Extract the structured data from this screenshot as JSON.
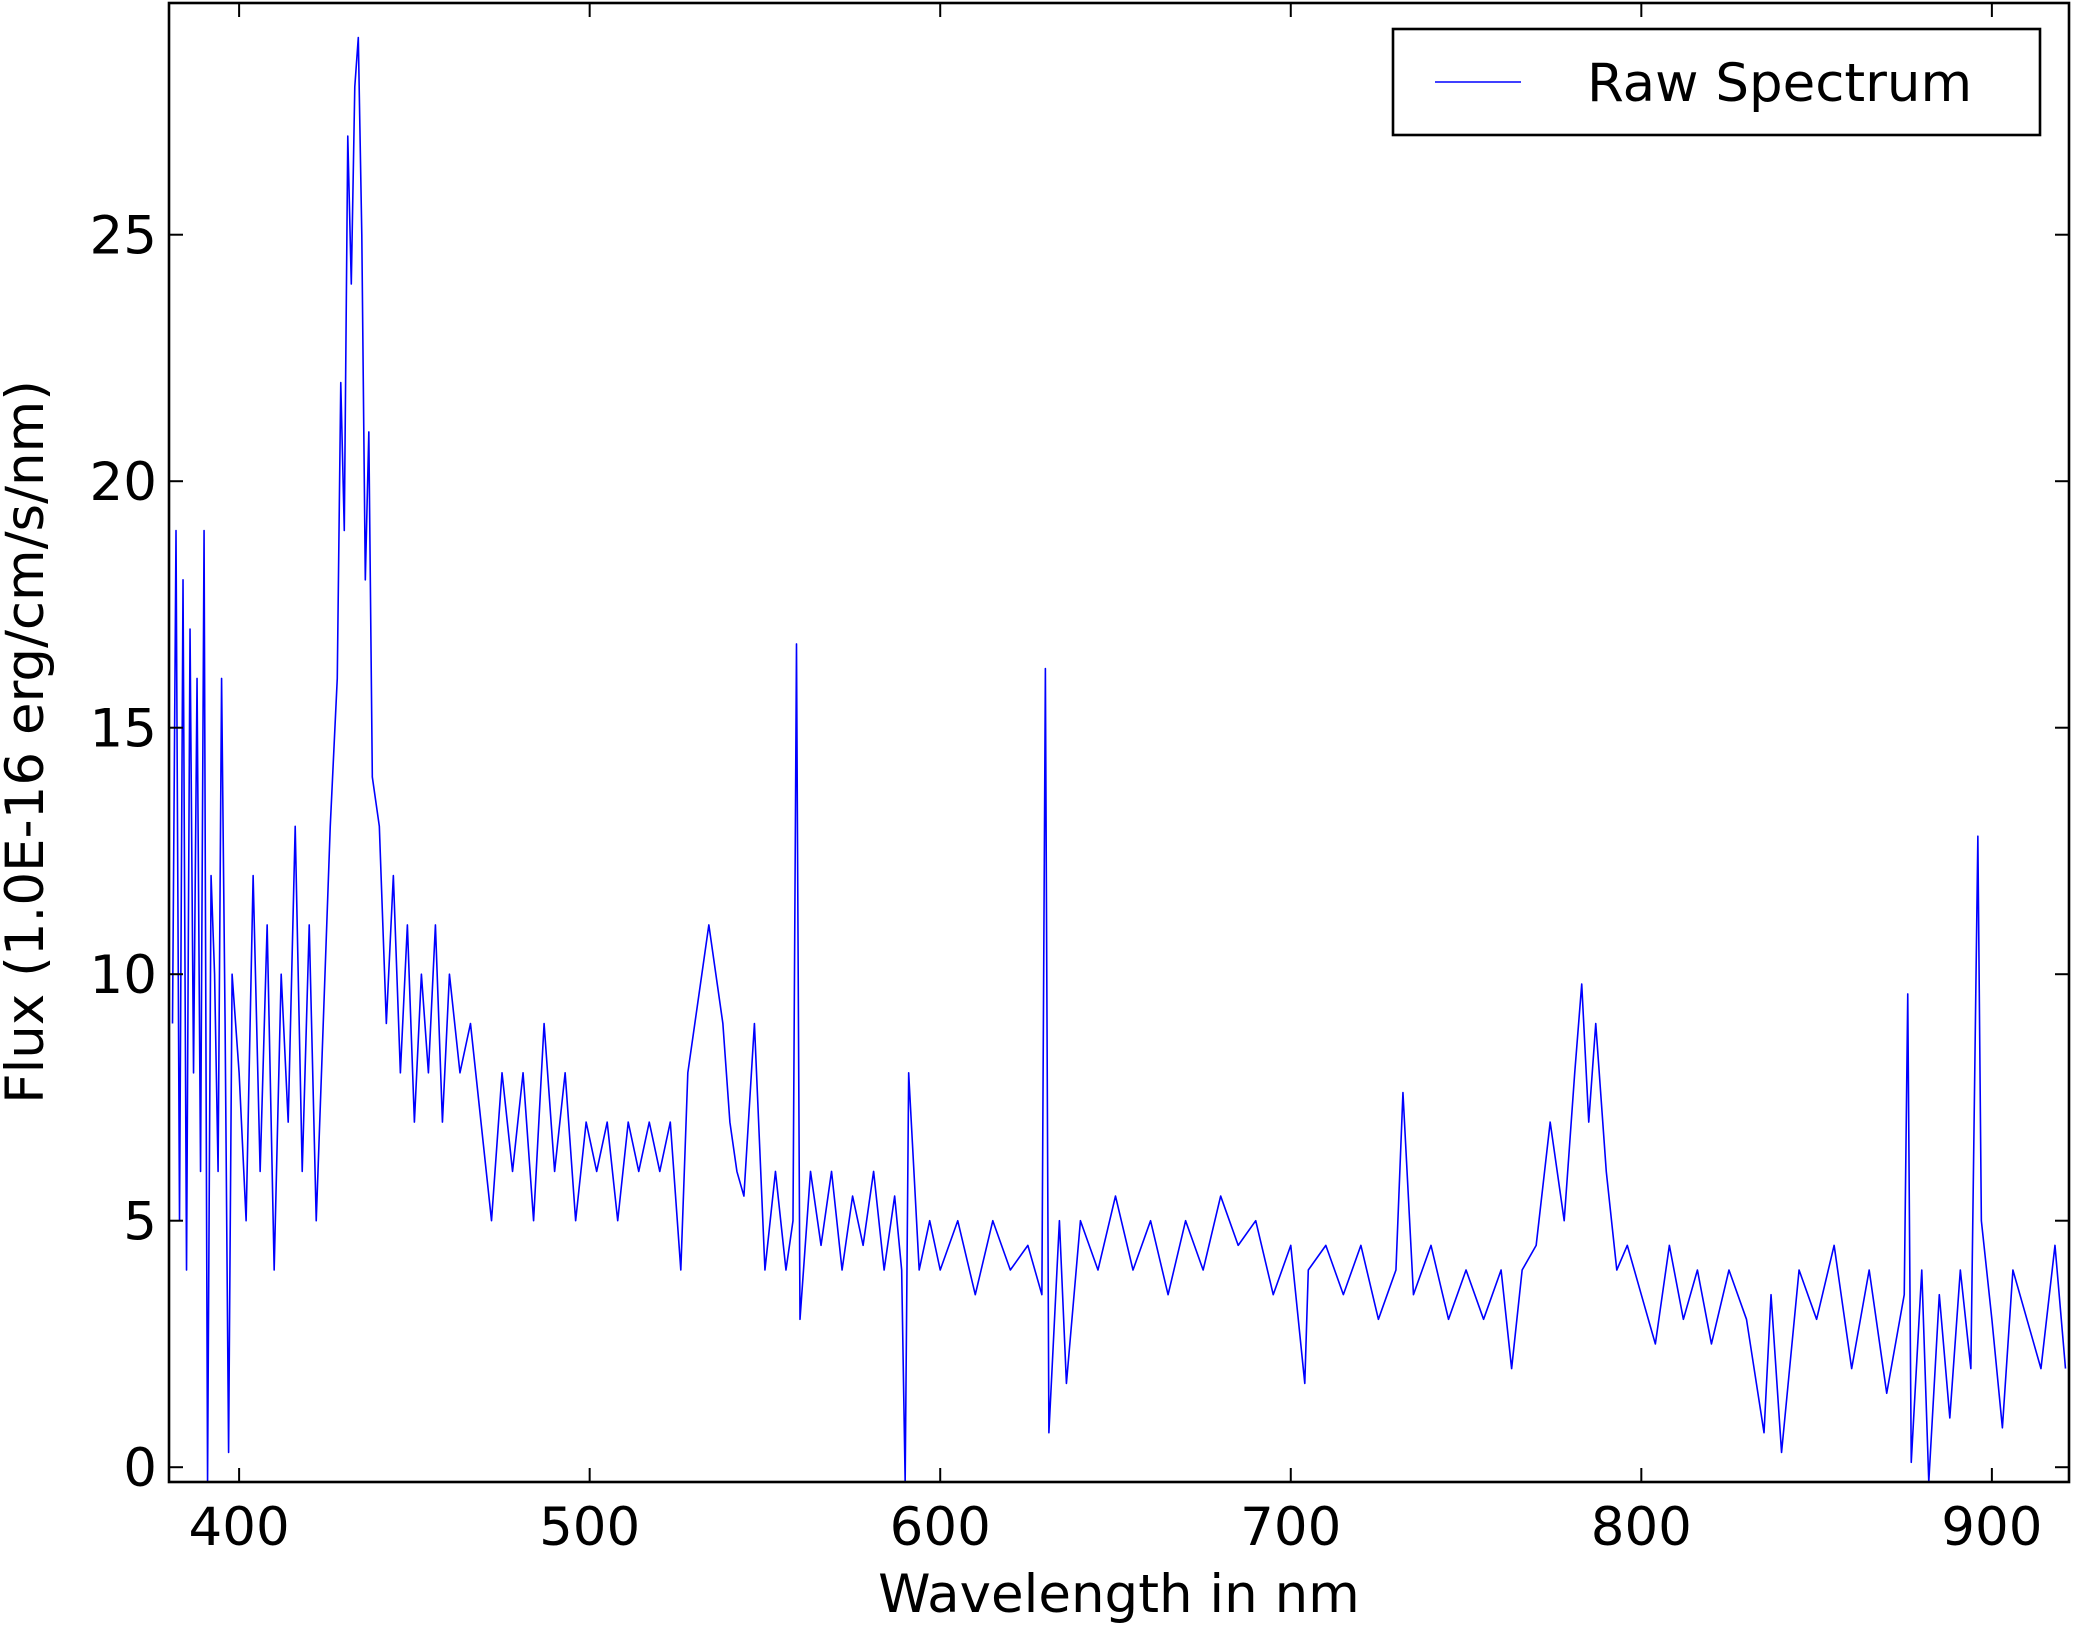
{
  "chart_data": {
    "type": "line",
    "x_label": "Wavelength in nm",
    "y_label": "Flux (1.0E-16 erg/cm/s/nm)",
    "x": [
      381,
      382,
      383,
      384,
      385,
      386,
      387,
      388,
      389,
      390,
      391,
      392,
      393,
      394,
      395,
      396,
      397,
      398,
      400,
      402,
      404,
      406,
      408,
      410,
      412,
      414,
      416,
      418,
      420,
      422,
      424,
      426,
      428,
      429,
      430,
      431,
      432,
      433,
      434,
      435,
      436,
      437,
      438,
      440,
      442,
      444,
      446,
      448,
      450,
      452,
      454,
      456,
      458,
      460,
      463,
      466,
      469,
      472,
      475,
      478,
      481,
      484,
      487,
      490,
      493,
      496,
      499,
      502,
      505,
      508,
      511,
      514,
      517,
      520,
      523,
      526,
      528,
      530,
      532,
      534,
      536,
      538,
      540,
      542,
      544,
      547,
      550,
      553,
      556,
      558,
      559,
      560,
      563,
      566,
      569,
      572,
      575,
      578,
      581,
      584,
      587,
      589,
      590,
      591,
      594,
      597,
      600,
      605,
      610,
      615,
      620,
      625,
      629,
      630,
      631,
      634,
      636,
      640,
      645,
      650,
      655,
      660,
      665,
      670,
      675,
      680,
      685,
      690,
      695,
      700,
      704,
      705,
      710,
      715,
      720,
      725,
      730,
      732,
      735,
      740,
      745,
      750,
      755,
      760,
      763,
      766,
      770,
      774,
      778,
      781,
      783,
      785,
      787,
      790,
      793,
      796,
      800,
      804,
      808,
      812,
      816,
      820,
      825,
      830,
      835,
      837,
      840,
      845,
      850,
      855,
      860,
      865,
      870,
      875,
      876,
      877,
      880,
      882,
      885,
      888,
      891,
      894,
      896,
      897,
      900,
      903,
      906,
      910,
      914,
      918,
      921
    ],
    "series": [
      {
        "name": "Raw Spectrum",
        "color": "#0000ff",
        "values": [
          9,
          19,
          5,
          18,
          4,
          17,
          8,
          16,
          6,
          19,
          -0.3,
          12,
          10,
          6,
          16,
          9,
          0.3,
          10,
          8,
          5,
          12,
          6,
          11,
          4,
          10,
          7,
          13,
          6,
          11,
          5,
          9,
          13,
          16,
          22,
          19,
          27,
          24,
          28,
          29,
          25,
          18,
          21,
          14,
          13,
          9,
          12,
          8,
          11,
          7,
          10,
          8,
          11,
          7,
          10,
          8,
          9,
          7,
          5,
          8,
          6,
          8,
          5,
          9,
          6,
          8,
          5,
          7,
          6,
          7,
          5,
          7,
          6,
          7,
          6,
          7,
          4,
          8,
          9,
          10,
          11,
          10,
          9,
          7,
          6,
          5.5,
          9,
          4,
          6,
          4,
          5,
          16.7,
          3,
          6,
          4.5,
          6,
          4,
          5.5,
          4.5,
          6,
          4,
          5.5,
          4,
          -0.3,
          8,
          4,
          5,
          4,
          5,
          3.5,
          5,
          4,
          4.5,
          3.5,
          16.2,
          0.7,
          5,
          1.7,
          5,
          4,
          5.5,
          4,
          5,
          3.5,
          5,
          4,
          5.5,
          4.5,
          5,
          3.5,
          4.5,
          1.7,
          4,
          4.5,
          3.5,
          4.5,
          3,
          4,
          7.6,
          3.5,
          4.5,
          3,
          4,
          3,
          4,
          2,
          4,
          4.5,
          7,
          5,
          8,
          9.8,
          7,
          9,
          6,
          4,
          4.5,
          3.5,
          2.5,
          4.5,
          3,
          4,
          2.5,
          4,
          3,
          0.7,
          3.5,
          0.3,
          4,
          3,
          4.5,
          2,
          4,
          1.5,
          3.5,
          9.6,
          0.1,
          4,
          -0.3,
          3.5,
          1,
          4,
          2,
          12.8,
          5,
          3,
          0.8,
          4,
          3,
          2,
          4.5,
          2
        ]
      }
    ],
    "xlim": [
      380,
      922
    ],
    "ylim": [
      -0.3,
      29.7
    ],
    "xticks": [
      400,
      500,
      600,
      700,
      800,
      900
    ],
    "yticks": [
      0,
      5,
      10,
      15,
      20,
      25
    ],
    "legend": "upper right"
  }
}
